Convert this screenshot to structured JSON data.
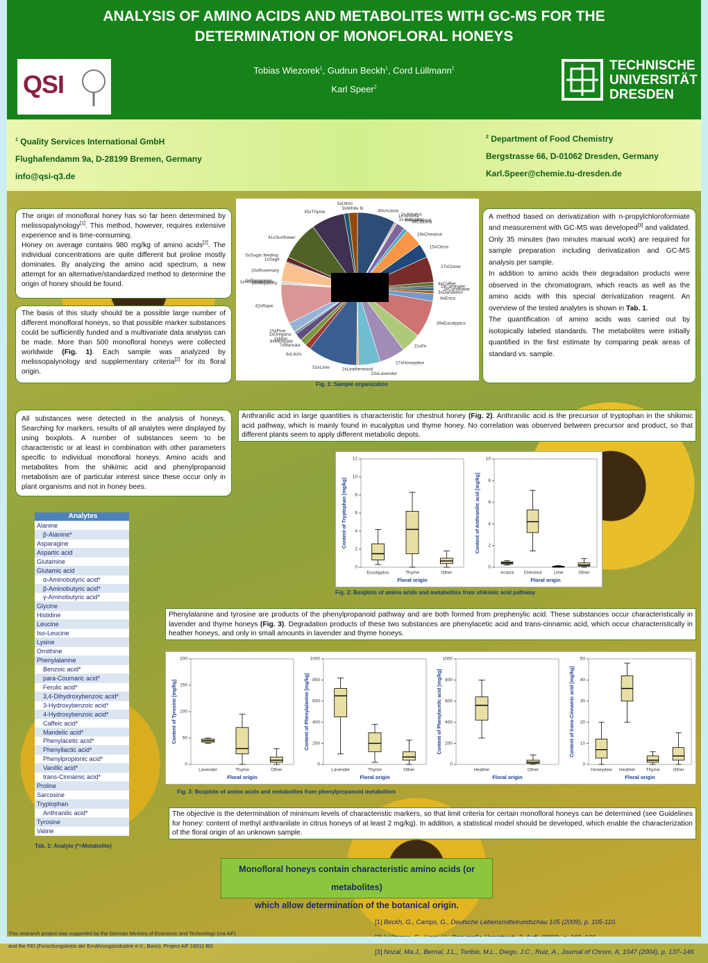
{
  "header": {
    "title_lines": [
      "ANALYSIS OF AMINO ACIDS AND METABOLITES WITH GC-MS FOR THE",
      "DETERMINATION OF MONOFLORAL HONEYS"
    ],
    "author_lines": [
      [
        "Tobias Wiezorek",
        {
          "sup": "1"
        },
        ", Gudrun Beckh",
        {
          "sup": "1"
        },
        ", Cord Lüllmann",
        {
          "sup": "1"
        }
      ],
      [
        "Karl Speer",
        {
          "sup": "2"
        }
      ]
    ],
    "logo_left": "QSI",
    "logo_right": [
      "TECHNISCHE",
      "UNIVERSITÄT",
      "DRESDEN"
    ]
  },
  "affiliations": {
    "left": [
      [
        {
          "sup": "1"
        },
        " Quality Services International GmbH"
      ],
      [
        "Flughafendamm 9a, D-28199 Bremen, Germany"
      ],
      [
        "info@qsi-q3.de"
      ]
    ],
    "right": [
      [
        {
          "sup": "2"
        },
        " Department of Food Chemistry"
      ],
      [
        "Bergstrasse 66, D-01062 Dresden, Germany"
      ],
      [
        "Karl.Speer@chemie.tu-dresden.de"
      ]
    ]
  },
  "intro": {
    "paragraphs": [
      [
        "The origin of monofloral honey has so far been determined by melissopalynology",
        {
          "sup": "[1]"
        },
        ". This method, however, requires extensive experience and is time-consuming."
      ],
      [
        "Honey on average contains 980 mg/kg of amino acids",
        {
          "sup": "[2]"
        },
        ". The individual concentrations are quite different but proline mostly dominates. By analyzing the amino acid spectrum, a new attempt for an alternative/standardized method to determine the origin of honey should be found."
      ]
    ]
  },
  "basis": {
    "paragraphs": [
      [
        "The basis of this study should be a possible large number of different monofloral honeys, so that possible marker substances could be sufficiently funded and a multivariate data analysis can be made. More than 500 monofloral honeys were collected worldwide ",
        {
          "b": "(Fig. 1)"
        },
        ". Each sample was analyzed by melissopalynology and supplementary criteria",
        {
          "sup": "[2]"
        },
        " for its floral origin."
      ]
    ]
  },
  "method": {
    "paragraphs": [
      [
        "A method based on derivatization with n-propylchloroformiate and measurement with GC-MS was developed",
        {
          "sup": "[3]"
        },
        " and validated. Only 35 minutes (two minutes manual work) are required for sample preparation including derivatization and GC-MS analysis per sample."
      ],
      [
        "In addition to amino acids their degradation products were observed in the chromatogram, which reacts as well as the amino acids with this special derivatization reagent. An overview of the tested analytes is shown in ",
        {
          "b": "Tab. 1"
        },
        "."
      ],
      [
        "The quantification of amino acids was carried out by isotopically labeled standards. The metabolites were initially quantified in the first estimate by comparing peak areas of standard vs. sample."
      ]
    ]
  },
  "results": {
    "paragraphs": [
      [
        "All substances were detected in the analysis of honeys. Searching for markers, results of all analytes were displayed by using boxplots. A number of substances seem to be characteristic or at least in combination with other parameters specific to individual monofloral honeys. Amino acids and metabolites from the shikimic acid and phenylpropanoid metabolism are of particular interest since these occur only in plant organisms and not in honey bees."
      ]
    ]
  },
  "anthranilic": {
    "paragraphs": [
      [
        "Anthranilic acid in large quantities is characteristic for chestnut honey ",
        {
          "b": "(Fig. 2)"
        },
        ". Anthranilic acid is the precursor of tryptophan in the shikimic acid pathway,  which is mainly found in eucalyptus und thyme honey. No correlation was observed between precursor and product, so that different plants seem to apply different metabolic depots."
      ]
    ]
  },
  "phenyl": {
    "paragraphs": [
      [
        "Phenylalanine and tyrosine are products of the phenylpropanoid pathway and are both formed from prephenylic acid. These substances occur characteristically in lavender and thyme honeys ",
        {
          "b": "(Fig. 3)"
        },
        ". Degradation products of these two substances are phenylacetic acid and trans-cinnamic acid, which occur characteristically in heather honeys, and only in small amounts in lavender and thyme honeys."
      ]
    ]
  },
  "objective": {
    "paragraphs": [
      [
        "The objective is the determination of minimum levels of characteristic markers, so that limit criteria for certain monofloral honeys can be determined (see Guidelines for honey: content of methyl anthranilate in citrus honeys of at least 2 mg/kg). In addition, a statistical model should be developed, which enable the characterization of the floral origin of an unknown sample."
      ]
    ]
  },
  "conclusion": {
    "paragraphs": [
      [
        "Monofloral honeys contain characteristic amino acids (or metabolites)"
      ],
      [
        "which allow determination of the botanical origin."
      ]
    ]
  },
  "references": {
    "paragraphs": [
      [
        "[1] ",
        {
          "i": "Beckh, G., Camps, G., Deutsche Lebensmittelrundschau 105 (2009), p. 105-110."
        }
      ],
      [
        "[2] ",
        {
          "i": "Lüllmann, C., Horn, H., Das große Honigbuch, 2. Aufl. (2002), p. 102, 106."
        }
      ],
      [
        "[3] ",
        {
          "i": "Nozal, Ma.J., Bernal, J.L., Toribio, M.L., Diego, J.C., Ruiz, A., Journal of Chrom. A, 1047 (2004), p. 137–146"
        }
      ]
    ]
  },
  "funding": {
    "paragraphs": [
      [
        "This research project was supported by the German Ministry of Economic and Technology (via AiF)"
      ],
      [
        "and the FEI (Forschungskreis der Ernährungsindustrie e.V., Bonn). Project AiF 16011 BG"
      ]
    ]
  },
  "captions": {
    "fig1": "Fig. 1: Sample organization",
    "fig2": "Fig. 2: Boxplots of amino acids and metabolites from shikimic acid pathway",
    "fig3": "Fig. 3: Boxplots of amino acids and metabolites from phenylpropanoid metabolism",
    "tab1": "Tab. 1: Analyte (*=Metabolite)"
  },
  "table": {
    "header": "Analytes",
    "items": [
      {
        "name": "Alanine",
        "sub": [
          "β-Alanine*"
        ]
      },
      {
        "name": "Asparagine",
        "sub": []
      },
      {
        "name": "Aspartic acid",
        "sub": []
      },
      {
        "name": "Glutamine",
        "sub": []
      },
      {
        "name": "Glutamic acid",
        "sub": [
          "α-Aminobutyric acid*",
          "β-Aminobutyric acid*",
          "γ-Aminobutyric acid*"
        ]
      },
      {
        "name": "Glycine",
        "sub": []
      },
      {
        "name": "Histidine",
        "sub": []
      },
      {
        "name": "Leucine",
        "sub": []
      },
      {
        "name": "Iso-Leucine",
        "sub": []
      },
      {
        "name": "Lysine",
        "sub": []
      },
      {
        "name": "Ornithine",
        "sub": []
      },
      {
        "name": "Phenylalanine",
        "sub": [
          "Benzoic acid*",
          "para-Coumaric acid*",
          "Ferulic acid*",
          "3,4-Dihydroxybenzoic acid*",
          "3-Hydroxybenzoic acid*",
          "4-Hydroxybenzoic acid*",
          "Caffeic acid*",
          "Mandelic acid*",
          "Phenylacetic acid*",
          "Phenyllactic acid*",
          "Phenylpropionic acid*",
          "Vanillic acid*",
          "trans-Cinnamic acid*"
        ]
      },
      {
        "name": "Proline",
        "sub": []
      },
      {
        "name": "Sarcosine",
        "sub": []
      },
      {
        "name": "Tryptophan",
        "sub": [
          "Anthranilic acid*"
        ]
      },
      {
        "name": "Tyrosine",
        "sub": []
      },
      {
        "name": "Valine",
        "sub": []
      }
    ]
  },
  "chart_data": [
    {
      "type": "pie",
      "categories": [
        "40xAcacia",
        "1x Amorfa",
        "1x Arbutus",
        "1x Avocado",
        "9xBuckwheat",
        "4xCalluna",
        "19xChestnut",
        "15xCitrus",
        "27xClover",
        "4xCoffee",
        "2xCoriander",
        "3xCornflower",
        "3xDandelion",
        "8xErica",
        "39xEucalyptus",
        "21xFir",
        "27xHoneydew",
        "23xLavender",
        "2xLeatherwood",
        "52xLime",
        "6xLitchi",
        "7xManuka",
        "8xMesquite",
        "2xMint",
        "1xOregano",
        "10xPine",
        "42xRape",
        "1xRaspberry",
        "1xRhododendron",
        "1xRewarewa",
        "20xRosemary",
        "1xSage",
        "5xSugar feeding",
        "41xSunflower",
        "35xThyme",
        "5xUlmo",
        "9xWhite fir"
      ],
      "values": [
        40,
        1,
        1,
        1,
        9,
        4,
        19,
        15,
        27,
        4,
        2,
        3,
        3,
        8,
        39,
        21,
        27,
        23,
        2,
        52,
        6,
        7,
        8,
        2,
        1,
        10,
        42,
        1,
        1,
        1,
        20,
        1,
        5,
        41,
        35,
        5,
        9
      ],
      "colors": [
        "#2c4d75",
        "#4f81bd",
        "#c0504d",
        "#9bbb59",
        "#8064a2",
        "#4bacc6",
        "#f79646",
        "#1f497d",
        "#772c2a",
        "#5f7530",
        "#4d3b62",
        "#276a7c",
        "#b65708",
        "#729aca",
        "#cd7371",
        "#afc97a",
        "#a08cb6",
        "#6fbdd1",
        "#f9ab6b",
        "#3a5f91",
        "#9a3a38",
        "#7a9a3a",
        "#634d80",
        "#338aa0",
        "#e07a1e",
        "#95b3d7",
        "#d99694",
        "#c3d69b",
        "#b2a1c7",
        "#93cddd",
        "#fac08f",
        "#17375e",
        "#632523",
        "#4f6228",
        "#3f3151",
        "#205867",
        "#974806"
      ]
    },
    {
      "type": "boxplot",
      "ylabel": "Content of Tryptophan [mg/kg]",
      "xlabel": "Floral origin",
      "categories": [
        "Eucalyptus",
        "Thyme",
        "Other"
      ],
      "ylim": [
        0,
        12
      ],
      "yticks": [
        0,
        2,
        4,
        6,
        8,
        10,
        12
      ],
      "box_color": "#e8dfa4",
      "boxes": [
        {
          "min": 0.3,
          "q1": 0.8,
          "median": 1.5,
          "q3": 2.6,
          "max": 4.2
        },
        {
          "min": 0,
          "q1": 1.5,
          "median": 4.2,
          "q3": 6.2,
          "max": 8.3
        },
        {
          "min": 0,
          "q1": 0.4,
          "median": 0.7,
          "q3": 1.0,
          "max": 1.8
        }
      ]
    },
    {
      "type": "boxplot",
      "ylabel": "Content of Anthranilic acid [mg/kg]",
      "xlabel": "Floral origin",
      "categories": [
        "Acacia",
        "Chestnut",
        "Lime",
        "Other"
      ],
      "ylim": [
        0,
        10
      ],
      "yticks": [
        0,
        2,
        4,
        6,
        8,
        10
      ],
      "box_color": "#e8dfa4",
      "boxes": [
        {
          "min": 0.2,
          "q1": 0.3,
          "median": 0.4,
          "q3": 0.5,
          "max": 0.6
        },
        {
          "min": 1.5,
          "q1": 3.2,
          "median": 4.2,
          "q3": 5.3,
          "max": 7.1
        },
        {
          "min": 0,
          "q1": 0,
          "median": 0.05,
          "q3": 0.1,
          "max": 0.15
        },
        {
          "min": 0,
          "q1": 0.1,
          "median": 0.2,
          "q3": 0.4,
          "max": 0.8
        }
      ]
    },
    {
      "type": "boxplot",
      "ylabel": "Content of Tyrosine [mg/kg]",
      "xlabel": "Floral origin",
      "categories": [
        "Lavender",
        "Thyme",
        "Other"
      ],
      "ylim": [
        0,
        200
      ],
      "yticks": [
        0,
        50,
        100,
        150,
        200
      ],
      "box_color": "#e8dfa4",
      "boxes": [
        {
          "min": 40,
          "q1": 42,
          "median": 45,
          "q3": 48,
          "max": 50
        },
        {
          "min": 0,
          "q1": 20,
          "median": 30,
          "q3": 70,
          "max": 95
        },
        {
          "min": 0,
          "q1": 4,
          "median": 8,
          "q3": 14,
          "max": 30
        }
      ]
    },
    {
      "type": "boxplot",
      "ylabel": "Content of Phenylalanine [mg/kg]",
      "xlabel": "Floral origin",
      "categories": [
        "Lavender",
        "Thyme",
        "Other"
      ],
      "ylim": [
        0,
        1000
      ],
      "yticks": [
        0,
        200,
        400,
        600,
        800,
        1000
      ],
      "box_color": "#e8dfa4",
      "boxes": [
        {
          "min": 100,
          "q1": 450,
          "median": 650,
          "q3": 720,
          "max": 820
        },
        {
          "min": 20,
          "q1": 120,
          "median": 200,
          "q3": 300,
          "max": 380
        },
        {
          "min": 0,
          "q1": 40,
          "median": 70,
          "q3": 120,
          "max": 230
        }
      ]
    },
    {
      "type": "boxplot",
      "ylabel": "Content of Phenylacetic acid [mg/kg]",
      "xlabel": "Floral origin",
      "categories": [
        "Heather",
        "Other"
      ],
      "ylim": [
        0,
        1000
      ],
      "yticks": [
        0,
        200,
        400,
        600,
        800,
        1000
      ],
      "box_color": "#e8dfa4",
      "boxes": [
        {
          "min": 250,
          "q1": 420,
          "median": 560,
          "q3": 640,
          "max": 800
        },
        {
          "min": 0,
          "q1": 10,
          "median": 20,
          "q3": 40,
          "max": 90
        }
      ]
    },
    {
      "type": "boxplot",
      "ylabel": "Content of trans-Cinnamic acid [mg/kg]",
      "xlabel": "Floral origin",
      "categories": [
        "Honeydew",
        "Heather",
        "Thyme",
        "Other"
      ],
      "ylim": [
        0,
        50
      ],
      "yticks": [
        0,
        10,
        20,
        30,
        40,
        50
      ],
      "box_color": "#e8dfa4",
      "boxes": [
        {
          "min": 0,
          "q1": 3,
          "median": 7,
          "q3": 12,
          "max": 20
        },
        {
          "min": 20,
          "q1": 30,
          "median": 36,
          "q3": 42,
          "max": 48
        },
        {
          "min": 0,
          "q1": 1,
          "median": 2,
          "q3": 4,
          "max": 6
        },
        {
          "min": 0,
          "q1": 2,
          "median": 4,
          "q3": 8,
          "max": 15
        }
      ]
    }
  ]
}
